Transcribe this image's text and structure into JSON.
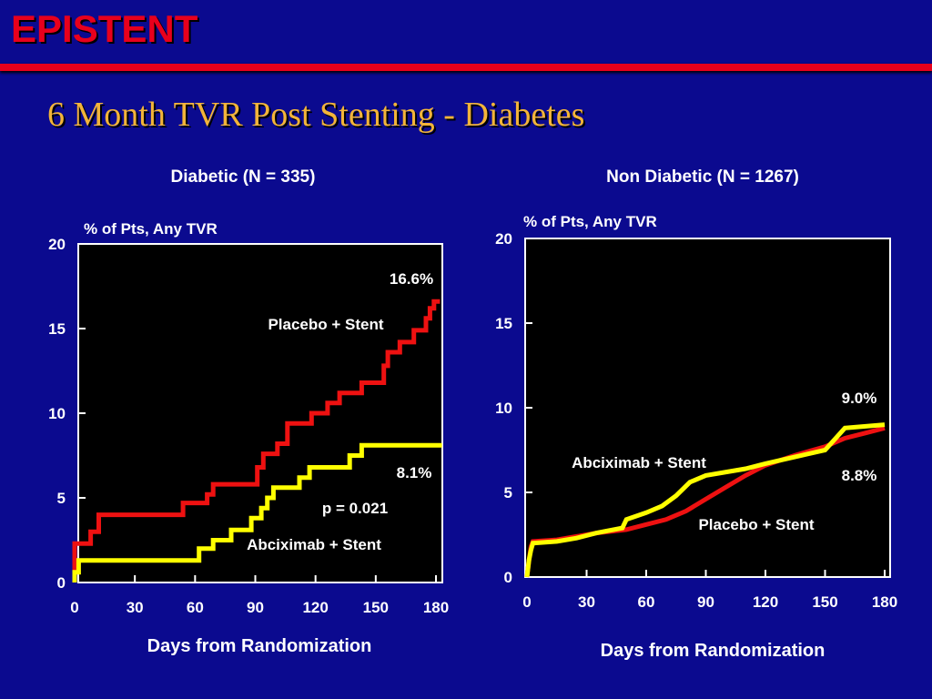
{
  "slide": {
    "title": "EPISTENT",
    "subtitle": "6 Month TVR Post Stenting - Diabetes"
  },
  "colors": {
    "background": "#0b0a8f",
    "title": "#e8001c",
    "subtitle": "#f2b43a",
    "placebo": "#ee1111",
    "abciximab": "#ffff00",
    "plot_bg": "#000000"
  },
  "chart_data": [
    {
      "type": "line",
      "title": "Diabetic (N = 335)",
      "ylabel": "% of Pts, Any TVR",
      "xlabel": "Days from Randomization",
      "xlim": [
        0,
        180
      ],
      "ylim": [
        0,
        20
      ],
      "x_ticks": [
        "0",
        "30",
        "60",
        "90",
        "120",
        "150",
        "180"
      ],
      "y_ticks": [
        "0",
        "5",
        "10",
        "15",
        "20"
      ],
      "series": [
        {
          "name": "Placebo + Stent",
          "color": "#ee1111",
          "end_label": "16.6%",
          "points": [
            [
              0,
              0
            ],
            [
              0,
              2.3
            ],
            [
              8,
              2.3
            ],
            [
              8,
              3.0
            ],
            [
              12,
              3.0
            ],
            [
              12,
              4.0
            ],
            [
              54,
              4.0
            ],
            [
              54,
              4.7
            ],
            [
              66,
              4.7
            ],
            [
              66,
              5.2
            ],
            [
              69,
              5.2
            ],
            [
              69,
              5.8
            ],
            [
              91,
              5.8
            ],
            [
              91,
              6.8
            ],
            [
              94,
              6.8
            ],
            [
              94,
              7.6
            ],
            [
              101,
              7.6
            ],
            [
              101,
              8.2
            ],
            [
              106,
              8.2
            ],
            [
              106,
              9.4
            ],
            [
              118,
              9.4
            ],
            [
              118,
              10.0
            ],
            [
              126,
              10.0
            ],
            [
              126,
              10.6
            ],
            [
              132,
              10.6
            ],
            [
              132,
              11.2
            ],
            [
              143,
              11.2
            ],
            [
              143,
              11.8
            ],
            [
              154,
              11.8
            ],
            [
              154,
              12.8
            ],
            [
              156,
              12.8
            ],
            [
              156,
              13.6
            ],
            [
              162,
              13.6
            ],
            [
              162,
              14.2
            ],
            [
              169,
              14.2
            ],
            [
              169,
              14.9
            ],
            [
              175,
              14.9
            ],
            [
              175,
              15.6
            ],
            [
              177,
              15.6
            ],
            [
              177,
              16.2
            ],
            [
              179,
              16.2
            ],
            [
              179,
              16.6
            ],
            [
              182,
              16.6
            ]
          ]
        },
        {
          "name": "Abciximab + Stent",
          "color": "#ffff00",
          "end_label": "8.1%",
          "points": [
            [
              0,
              0
            ],
            [
              0,
              0.6
            ],
            [
              2,
              0.6
            ],
            [
              2,
              1.3
            ],
            [
              62,
              1.3
            ],
            [
              62,
              2.0
            ],
            [
              69,
              2.0
            ],
            [
              69,
              2.5
            ],
            [
              78,
              2.5
            ],
            [
              78,
              3.1
            ],
            [
              88,
              3.1
            ],
            [
              88,
              3.8
            ],
            [
              93,
              3.8
            ],
            [
              93,
              4.4
            ],
            [
              96,
              4.4
            ],
            [
              96,
              5.0
            ],
            [
              99,
              5.0
            ],
            [
              99,
              5.6
            ],
            [
              112,
              5.6
            ],
            [
              112,
              6.2
            ],
            [
              117,
              6.2
            ],
            [
              117,
              6.8
            ],
            [
              137,
              6.8
            ],
            [
              137,
              7.5
            ],
            [
              143,
              7.5
            ],
            [
              143,
              8.1
            ],
            [
              183,
              8.1
            ]
          ]
        }
      ],
      "annotations": [
        "Placebo + Stent",
        "Abciximab + Stent",
        "p = 0.021"
      ]
    },
    {
      "type": "line",
      "title": "Non Diabetic (N = 1267)",
      "ylabel": "% of Pts, Any TVR",
      "xlabel": "Days from Randomization",
      "xlim": [
        0,
        180
      ],
      "ylim": [
        0,
        20
      ],
      "x_ticks": [
        "0",
        "30",
        "60",
        "90",
        "120",
        "150",
        "180"
      ],
      "y_ticks": [
        "0",
        "5",
        "10",
        "15",
        "20"
      ],
      "series": [
        {
          "name": "Placebo + Stent",
          "color": "#ee1111",
          "end_label": "8.8%",
          "points": [
            [
              0,
              0
            ],
            [
              1,
              1.0
            ],
            [
              2,
              1.8
            ],
            [
              3,
              2.1
            ],
            [
              15,
              2.2
            ],
            [
              25,
              2.4
            ],
            [
              35,
              2.6
            ],
            [
              50,
              2.8
            ],
            [
              60,
              3.1
            ],
            [
              70,
              3.4
            ],
            [
              80,
              3.9
            ],
            [
              90,
              4.6
            ],
            [
              100,
              5.3
            ],
            [
              110,
              6.0
            ],
            [
              120,
              6.6
            ],
            [
              135,
              7.2
            ],
            [
              150,
              7.7
            ],
            [
              160,
              8.2
            ],
            [
              170,
              8.5
            ],
            [
              180,
              8.8
            ]
          ]
        },
        {
          "name": "Abciximab + Stent",
          "color": "#ffff00",
          "end_label": "9.0%",
          "points": [
            [
              0,
              0
            ],
            [
              1,
              1.0
            ],
            [
              2,
              1.6
            ],
            [
              3,
              2.0
            ],
            [
              15,
              2.1
            ],
            [
              25,
              2.3
            ],
            [
              35,
              2.6
            ],
            [
              48,
              2.9
            ],
            [
              50,
              3.4
            ],
            [
              60,
              3.8
            ],
            [
              68,
              4.2
            ],
            [
              75,
              4.8
            ],
            [
              82,
              5.6
            ],
            [
              90,
              6.0
            ],
            [
              110,
              6.4
            ],
            [
              120,
              6.7
            ],
            [
              135,
              7.1
            ],
            [
              150,
              7.5
            ],
            [
              160,
              8.8
            ],
            [
              180,
              9.0
            ]
          ]
        }
      ],
      "annotations": [
        "Abciximab + Stent",
        "Placebo + Stent"
      ]
    }
  ]
}
